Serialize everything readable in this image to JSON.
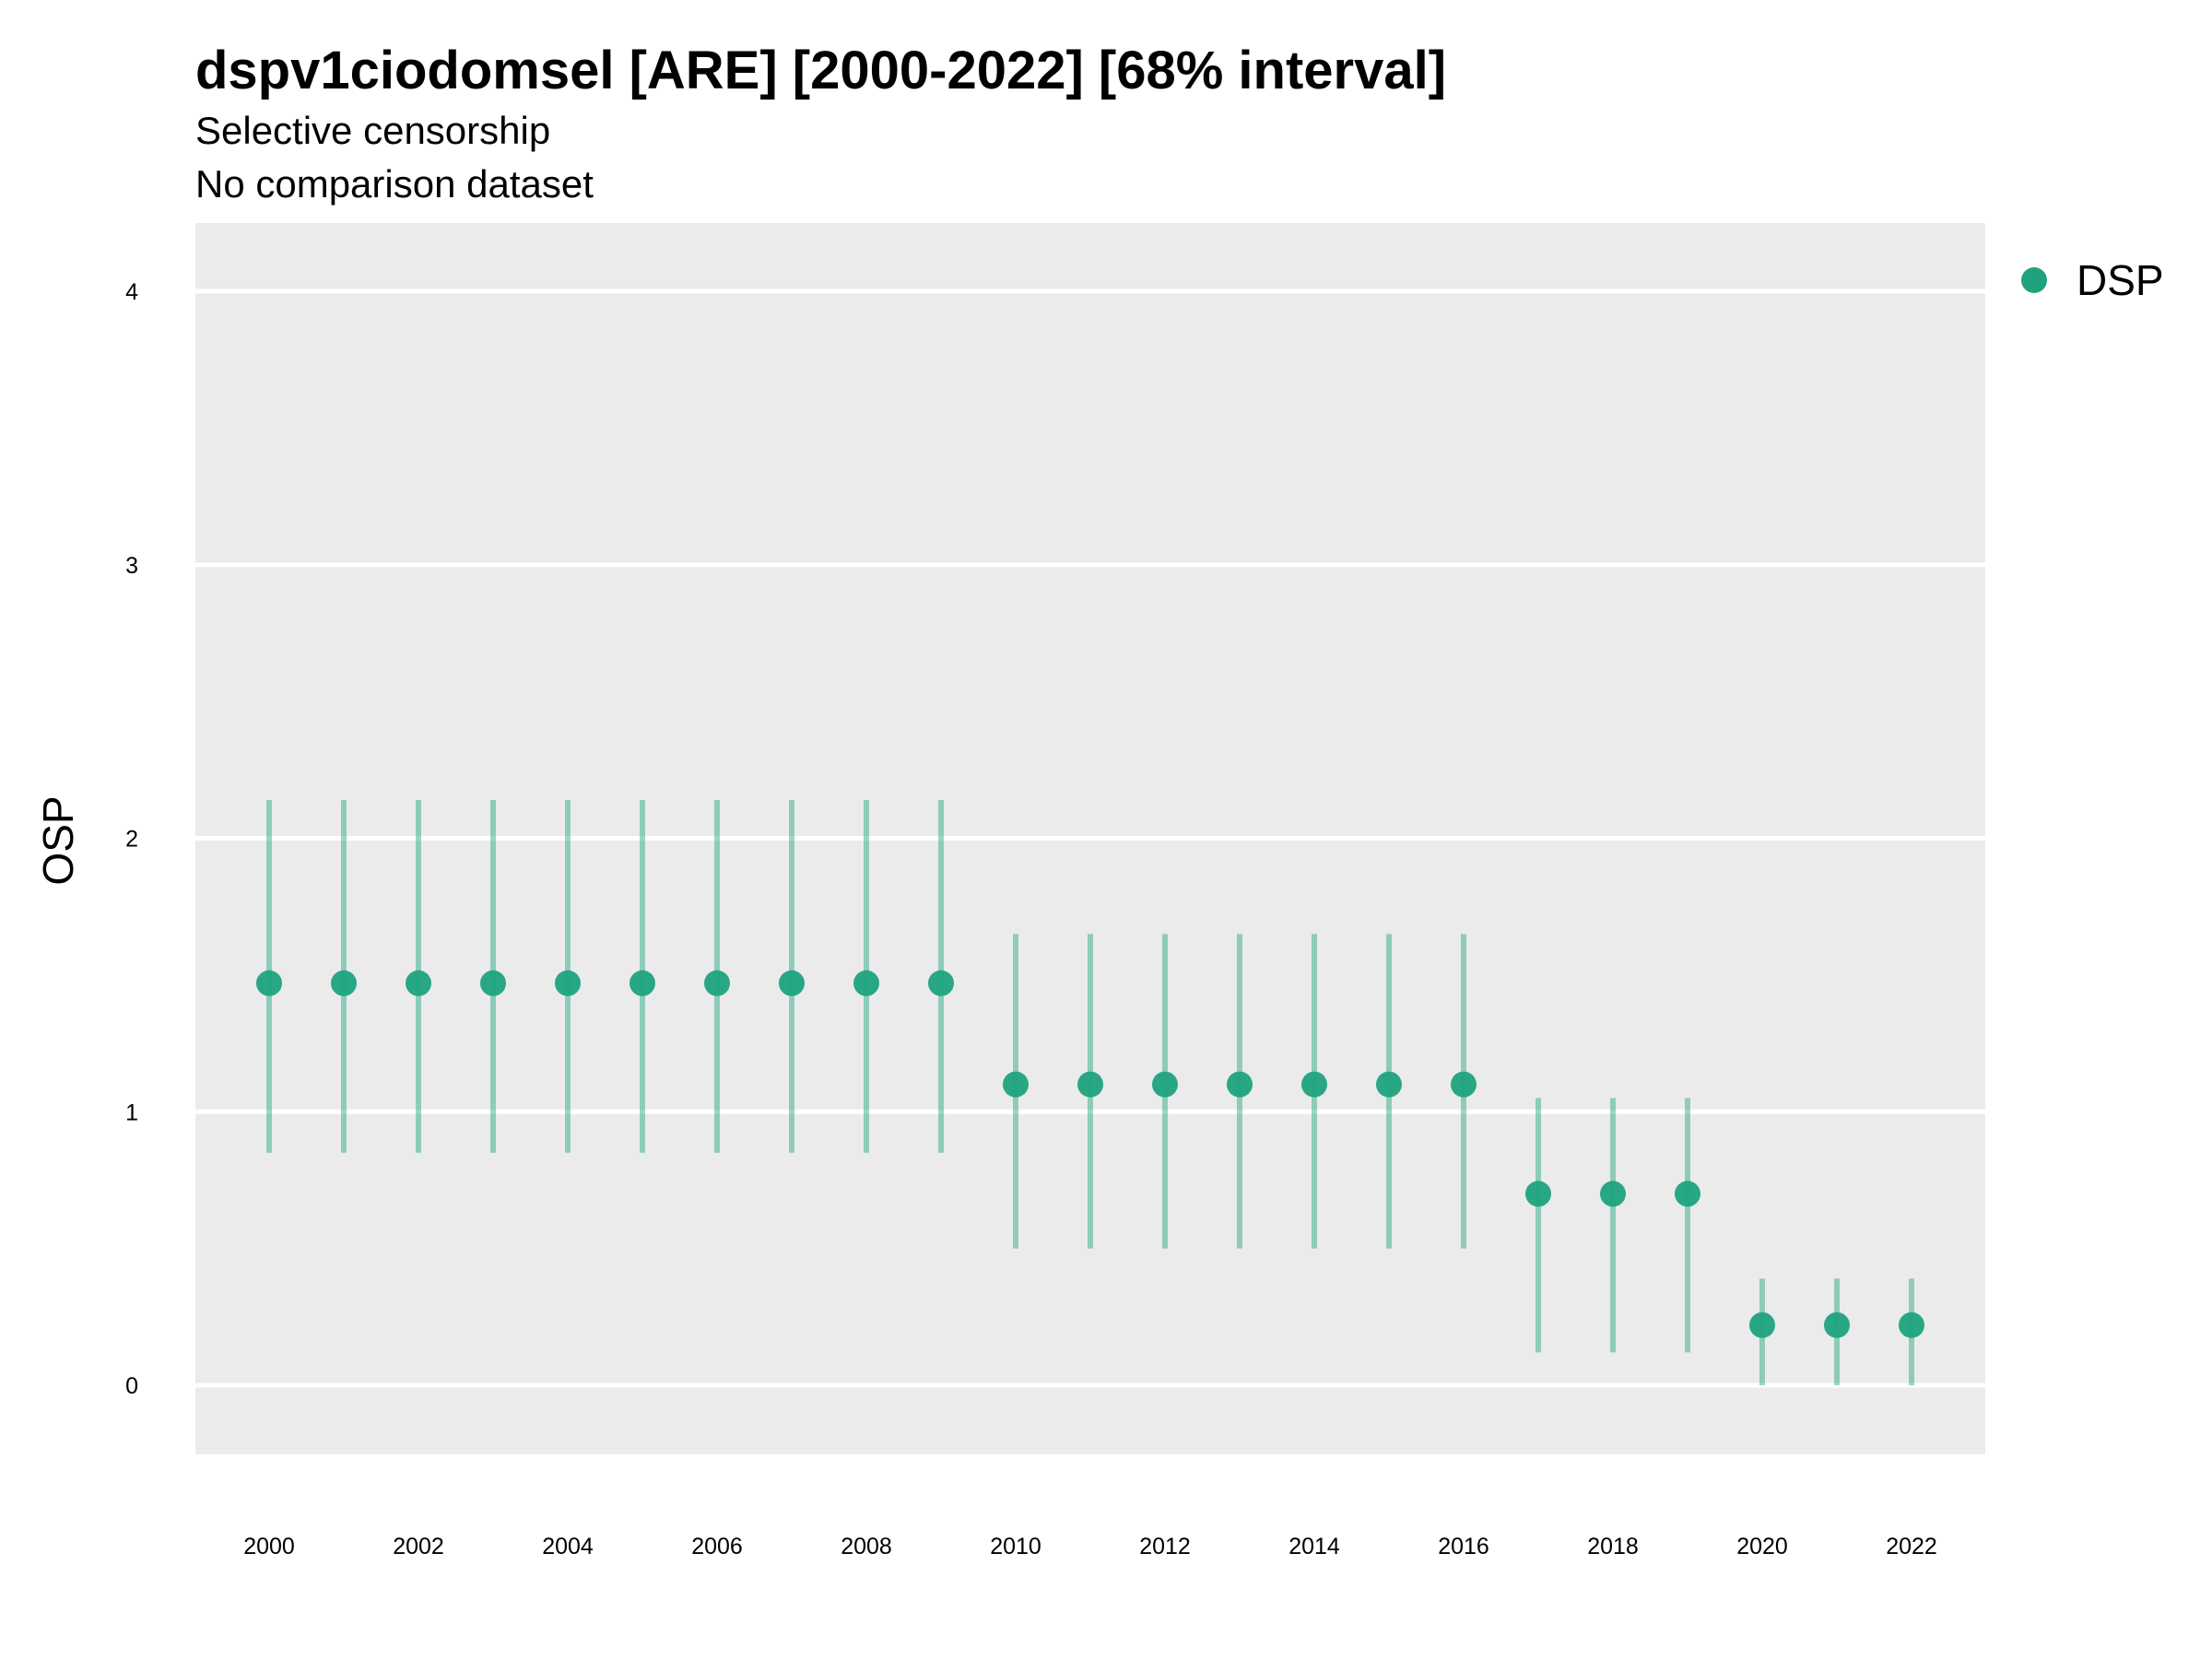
{
  "chart_data": {
    "type": "scatter",
    "title": "dspv1ciodomsel [ARE] [2000-2022] [68% interval]",
    "subtitle": "Selective censorship",
    "subtitle2": "No comparison dataset",
    "xlabel": "",
    "ylabel": "OSP",
    "ylim": [
      -0.25,
      4.25
    ],
    "xlim": [
      1999,
      2023
    ],
    "y_ticks": [
      "0",
      "1",
      "2",
      "3",
      "4"
    ],
    "x_ticks": [
      "2000",
      "2002",
      "2004",
      "2006",
      "2008",
      "2010",
      "2012",
      "2014",
      "2016",
      "2018",
      "2020",
      "2022"
    ],
    "grid": true,
    "legend_position": "right",
    "series": [
      {
        "name": "DSP",
        "color": "#1fa37f",
        "x": [
          2000,
          2001,
          2002,
          2003,
          2004,
          2005,
          2006,
          2007,
          2008,
          2009,
          2010,
          2011,
          2012,
          2013,
          2014,
          2015,
          2016,
          2017,
          2018,
          2019,
          2020,
          2021,
          2022
        ],
        "y": [
          1.47,
          1.47,
          1.47,
          1.47,
          1.47,
          1.47,
          1.47,
          1.47,
          1.47,
          1.47,
          1.1,
          1.1,
          1.1,
          1.1,
          1.1,
          1.1,
          1.1,
          0.7,
          0.7,
          0.7,
          0.22,
          0.22,
          0.22
        ],
        "lower": [
          0.85,
          0.85,
          0.85,
          0.85,
          0.85,
          0.85,
          0.85,
          0.85,
          0.85,
          0.85,
          0.5,
          0.5,
          0.5,
          0.5,
          0.5,
          0.5,
          0.5,
          0.12,
          0.12,
          0.12,
          0.0,
          0.0,
          0.0
        ],
        "upper": [
          2.14,
          2.14,
          2.14,
          2.14,
          2.14,
          2.14,
          2.14,
          2.14,
          2.14,
          2.14,
          1.65,
          1.65,
          1.65,
          1.65,
          1.65,
          1.65,
          1.65,
          1.05,
          1.05,
          1.05,
          0.39,
          0.39,
          0.39
        ]
      }
    ]
  }
}
